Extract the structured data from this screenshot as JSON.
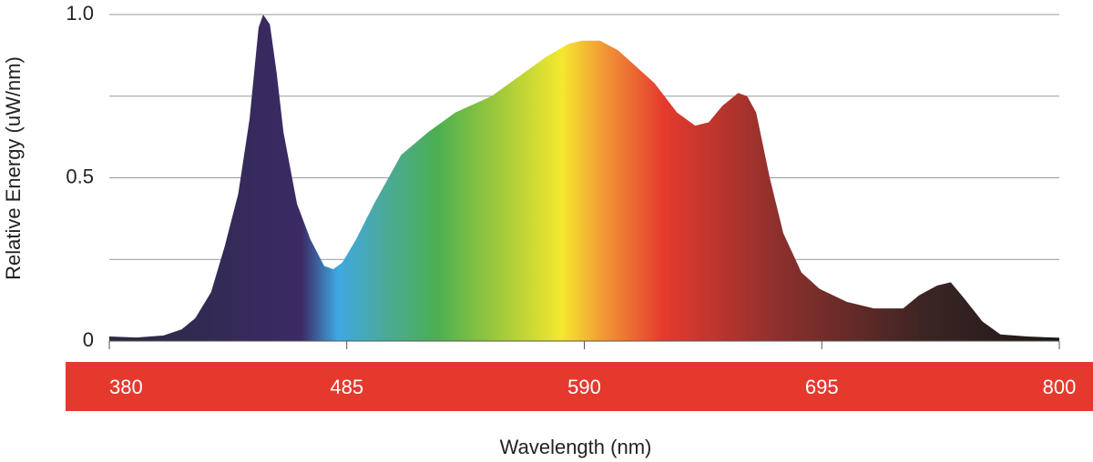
{
  "chart_data": {
    "type": "area",
    "x_label": "Wavelength (nm)",
    "y_label": "Relative Energy (uW/nm)",
    "x": [
      380,
      392,
      404,
      412,
      418,
      425,
      431,
      437,
      442,
      446,
      448,
      451,
      454,
      457,
      463,
      469,
      475,
      479,
      483,
      489,
      497,
      509,
      521,
      533,
      549,
      561,
      573,
      583,
      589,
      597,
      605,
      613,
      621,
      631,
      639,
      645,
      651,
      658,
      662,
      666,
      672,
      678,
      686,
      694,
      706,
      718,
      731,
      738,
      746,
      752,
      758,
      766,
      774,
      786,
      800
    ],
    "values": [
      0.014,
      0.011,
      0.017,
      0.036,
      0.07,
      0.15,
      0.29,
      0.45,
      0.68,
      0.96,
      1.0,
      0.97,
      0.82,
      0.64,
      0.42,
      0.31,
      0.23,
      0.22,
      0.24,
      0.31,
      0.42,
      0.57,
      0.64,
      0.7,
      0.75,
      0.81,
      0.87,
      0.91,
      0.92,
      0.92,
      0.89,
      0.84,
      0.79,
      0.7,
      0.66,
      0.67,
      0.72,
      0.76,
      0.75,
      0.7,
      0.5,
      0.33,
      0.21,
      0.16,
      0.12,
      0.1,
      0.1,
      0.14,
      0.17,
      0.18,
      0.13,
      0.06,
      0.02,
      0.014,
      0.01
    ],
    "xlim": [
      380,
      800
    ],
    "xticks": [
      380,
      485,
      590,
      695,
      800
    ],
    "ylim": [
      0,
      1
    ],
    "yticks": [
      0,
      0.5,
      {
        "value": 1,
        "label": "1.0"
      }
    ],
    "grid_values": [
      0.25,
      0.5,
      0.75,
      1
    ],
    "grid": true,
    "axis_band_color": "#e5392e",
    "gradient": [
      {
        "at": 380,
        "color": "#2a2a40"
      },
      {
        "at": 465,
        "color": "#3b2a66"
      },
      {
        "at": 481,
        "color": "#3fa8e2"
      },
      {
        "at": 500,
        "color": "#4aa9a0"
      },
      {
        "at": 525,
        "color": "#4caf50"
      },
      {
        "at": 555,
        "color": "#a8cc3a"
      },
      {
        "at": 580,
        "color": "#f4e82e"
      },
      {
        "at": 600,
        "color": "#f29236"
      },
      {
        "at": 625,
        "color": "#e53a2e"
      },
      {
        "at": 675,
        "color": "#8e302c"
      },
      {
        "at": 740,
        "color": "#3c2523"
      },
      {
        "at": 800,
        "color": "#1c1818"
      }
    ]
  }
}
